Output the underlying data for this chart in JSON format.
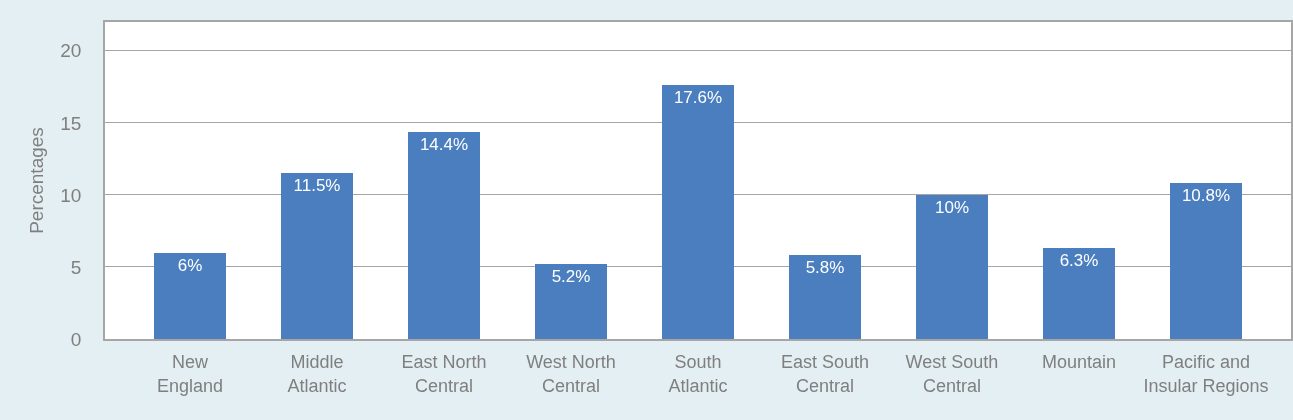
{
  "chart_data": {
    "type": "bar",
    "ylabel": "Percentages",
    "categories": [
      "New England",
      "Middle Atlantic",
      "East North Central",
      "West North Central",
      "South Atlantic",
      "East South Central",
      "West South Central",
      "Mountain",
      "Pacific and Insular Regions"
    ],
    "values": [
      6,
      11.5,
      14.4,
      5.2,
      17.6,
      5.8,
      10,
      6.3,
      10.8
    ],
    "value_labels": [
      "6%",
      "11.5%",
      "14.4%",
      "5.2%",
      "17.6%",
      "5.8%",
      "10%",
      "6.3%",
      "10.8%"
    ],
    "color": "#4a7ebf",
    "ylim": [
      0,
      22
    ],
    "yticks": [
      0,
      5,
      10,
      15,
      20
    ],
    "grid": "y"
  }
}
